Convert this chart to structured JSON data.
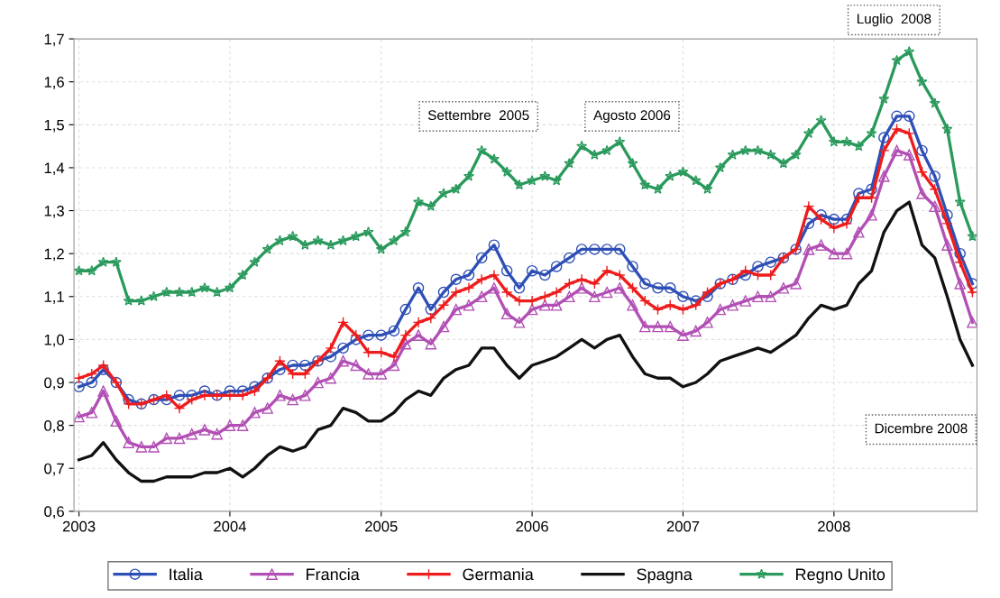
{
  "chart_data": {
    "type": "line",
    "x": [
      "2003-01",
      "2003-02",
      "2003-03",
      "2003-04",
      "2003-05",
      "2003-06",
      "2003-07",
      "2003-08",
      "2003-09",
      "2003-10",
      "2003-11",
      "2003-12",
      "2004-01",
      "2004-02",
      "2004-03",
      "2004-04",
      "2004-05",
      "2004-06",
      "2004-07",
      "2004-08",
      "2004-09",
      "2004-10",
      "2004-11",
      "2004-12",
      "2005-01",
      "2005-02",
      "2005-03",
      "2005-04",
      "2005-05",
      "2005-06",
      "2005-07",
      "2005-08",
      "2005-09",
      "2005-10",
      "2005-11",
      "2005-12",
      "2006-01",
      "2006-02",
      "2006-03",
      "2006-04",
      "2006-05",
      "2006-06",
      "2006-07",
      "2006-08",
      "2006-09",
      "2006-10",
      "2006-11",
      "2006-12",
      "2007-01",
      "2007-02",
      "2007-03",
      "2007-04",
      "2007-05",
      "2007-06",
      "2007-07",
      "2007-08",
      "2007-09",
      "2007-10",
      "2007-11",
      "2007-12",
      "2008-01",
      "2008-02",
      "2008-03",
      "2008-04",
      "2008-05",
      "2008-06",
      "2008-07",
      "2008-08",
      "2008-09",
      "2008-10",
      "2008-11",
      "2008-12"
    ],
    "series": [
      {
        "name": "Italia",
        "color": "#2e4fb5",
        "marker": "circle",
        "values": [
          0.89,
          0.9,
          0.93,
          0.9,
          0.86,
          0.85,
          0.86,
          0.86,
          0.87,
          0.87,
          0.88,
          0.87,
          0.88,
          0.88,
          0.89,
          0.91,
          0.93,
          0.94,
          0.94,
          0.95,
          0.96,
          0.98,
          1.0,
          1.01,
          1.01,
          1.02,
          1.07,
          1.12,
          1.07,
          1.11,
          1.14,
          1.15,
          1.19,
          1.22,
          1.16,
          1.12,
          1.16,
          1.15,
          1.17,
          1.19,
          1.21,
          1.21,
          1.21,
          1.21,
          1.17,
          1.13,
          1.12,
          1.12,
          1.1,
          1.09,
          1.1,
          1.13,
          1.14,
          1.15,
          1.17,
          1.18,
          1.19,
          1.21,
          1.27,
          1.29,
          1.28,
          1.28,
          1.34,
          1.35,
          1.47,
          1.52,
          1.52,
          1.44,
          1.38,
          1.29,
          1.2,
          1.13
        ]
      },
      {
        "name": "Francia",
        "color": "#b24fb4",
        "marker": "triangle",
        "values": [
          0.82,
          0.83,
          0.88,
          0.81,
          0.76,
          0.75,
          0.75,
          0.77,
          0.77,
          0.78,
          0.79,
          0.78,
          0.8,
          0.8,
          0.83,
          0.84,
          0.87,
          0.86,
          0.87,
          0.9,
          0.91,
          0.95,
          0.94,
          0.92,
          0.92,
          0.94,
          0.99,
          1.01,
          0.99,
          1.03,
          1.07,
          1.08,
          1.1,
          1.12,
          1.06,
          1.04,
          1.07,
          1.08,
          1.08,
          1.1,
          1.12,
          1.1,
          1.11,
          1.12,
          1.08,
          1.03,
          1.03,
          1.03,
          1.01,
          1.02,
          1.04,
          1.07,
          1.08,
          1.09,
          1.1,
          1.1,
          1.12,
          1.13,
          1.21,
          1.22,
          1.2,
          1.2,
          1.25,
          1.29,
          1.38,
          1.44,
          1.43,
          1.34,
          1.31,
          1.22,
          1.13,
          1.04
        ]
      },
      {
        "name": "Germania",
        "color": "#ee1c1c",
        "marker": "cross",
        "values": [
          0.91,
          0.92,
          0.94,
          0.9,
          0.85,
          0.85,
          0.86,
          0.87,
          0.84,
          0.86,
          0.87,
          0.87,
          0.87,
          0.87,
          0.88,
          0.91,
          0.95,
          0.92,
          0.92,
          0.95,
          0.98,
          1.04,
          1.01,
          0.97,
          0.97,
          0.96,
          1.01,
          1.04,
          1.05,
          1.08,
          1.11,
          1.12,
          1.14,
          1.15,
          1.11,
          1.09,
          1.09,
          1.1,
          1.11,
          1.13,
          1.14,
          1.13,
          1.16,
          1.15,
          1.12,
          1.09,
          1.07,
          1.08,
          1.07,
          1.08,
          1.11,
          1.13,
          1.14,
          1.16,
          1.15,
          1.15,
          1.19,
          1.21,
          1.31,
          1.28,
          1.26,
          1.27,
          1.33,
          1.33,
          1.44,
          1.49,
          1.48,
          1.39,
          1.35,
          1.27,
          1.18,
          1.11
        ]
      },
      {
        "name": "Spagna",
        "color": "#111111",
        "marker": "none",
        "values": [
          0.72,
          0.73,
          0.76,
          0.72,
          0.69,
          0.67,
          0.67,
          0.68,
          0.68,
          0.68,
          0.69,
          0.69,
          0.7,
          0.68,
          0.7,
          0.73,
          0.75,
          0.74,
          0.75,
          0.79,
          0.8,
          0.84,
          0.83,
          0.81,
          0.81,
          0.83,
          0.86,
          0.88,
          0.87,
          0.91,
          0.93,
          0.94,
          0.98,
          0.98,
          0.94,
          0.91,
          0.94,
          0.95,
          0.96,
          0.98,
          1.0,
          0.98,
          1.0,
          1.01,
          0.96,
          0.92,
          0.91,
          0.91,
          0.89,
          0.9,
          0.92,
          0.95,
          0.96,
          0.97,
          0.98,
          0.97,
          0.99,
          1.01,
          1.05,
          1.08,
          1.07,
          1.08,
          1.13,
          1.16,
          1.25,
          1.3,
          1.32,
          1.22,
          1.19,
          1.1,
          1.0,
          0.94
        ]
      },
      {
        "name": "Regno Unito",
        "color": "#2a9a5c",
        "marker": "star",
        "values": [
          1.16,
          1.16,
          1.18,
          1.18,
          1.09,
          1.09,
          1.1,
          1.11,
          1.11,
          1.11,
          1.12,
          1.11,
          1.12,
          1.15,
          1.18,
          1.21,
          1.23,
          1.24,
          1.22,
          1.23,
          1.22,
          1.23,
          1.24,
          1.25,
          1.21,
          1.23,
          1.25,
          1.32,
          1.31,
          1.34,
          1.35,
          1.38,
          1.44,
          1.42,
          1.39,
          1.36,
          1.37,
          1.38,
          1.37,
          1.41,
          1.45,
          1.43,
          1.44,
          1.46,
          1.41,
          1.36,
          1.35,
          1.38,
          1.39,
          1.37,
          1.35,
          1.4,
          1.43,
          1.44,
          1.44,
          1.43,
          1.41,
          1.43,
          1.48,
          1.51,
          1.46,
          1.46,
          1.45,
          1.48,
          1.56,
          1.65,
          1.67,
          1.6,
          1.55,
          1.49,
          1.32,
          1.24
        ]
      }
    ],
    "xlim": [
      "2002-12-20",
      "2008-12-12"
    ],
    "xticks": [
      {
        "value": "2003-01-01",
        "label": "2003"
      },
      {
        "value": "2004-01-01",
        "label": "2004"
      },
      {
        "value": "2005-01-01",
        "label": "2005"
      },
      {
        "value": "2006-01-01",
        "label": "2006"
      },
      {
        "value": "2007-01-01",
        "label": "2007"
      },
      {
        "value": "2008-01-01",
        "label": "2008"
      }
    ],
    "ylim": [
      0.6,
      1.7
    ],
    "yticks": [
      {
        "value": 0.6,
        "label": "0,6"
      },
      {
        "value": 0.7,
        "label": "0,7"
      },
      {
        "value": 0.8,
        "label": "0,8"
      },
      {
        "value": 0.9,
        "label": "0,9"
      },
      {
        "value": 1.0,
        "label": "1,0"
      },
      {
        "value": 1.1,
        "label": "1,1"
      },
      {
        "value": 1.2,
        "label": "1,2"
      },
      {
        "value": 1.3,
        "label": "1,3"
      },
      {
        "value": 1.4,
        "label": "1,4"
      },
      {
        "value": 1.5,
        "label": "1,5"
      },
      {
        "value": 1.6,
        "label": "1,6"
      },
      {
        "value": 1.7,
        "label": "1,7"
      }
    ],
    "grid": true,
    "legend": "bottom",
    "line_style": "solid",
    "annotations": [
      "Settembre  2005",
      "Agosto 2006",
      "Luglio  2008",
      "Dicembre 2008"
    ]
  }
}
